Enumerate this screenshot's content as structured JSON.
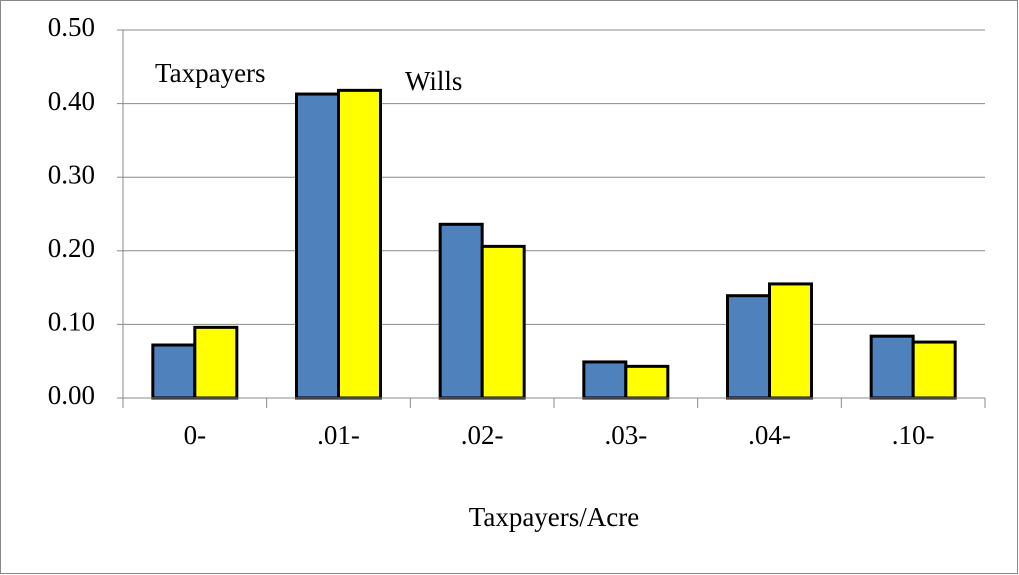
{
  "chart_data": {
    "type": "bar",
    "x_label": "Taxpayers/Acre",
    "categories": [
      "0-",
      ".01-",
      ".02-",
      ".03-",
      ".04-",
      ".10-"
    ],
    "series": [
      {
        "name": "Taxpayers",
        "color": "#4f81bd",
        "values": [
          0.072,
          0.413,
          0.236,
          0.049,
          0.139,
          0.084
        ]
      },
      {
        "name": "Wills",
        "color": "#ffff00",
        "values": [
          0.096,
          0.418,
          0.206,
          0.043,
          0.155,
          0.076
        ]
      }
    ],
    "ylim": [
      0,
      0.5
    ],
    "yticks": [
      {
        "value": 0,
        "label": "0.00"
      },
      {
        "value": 0.1,
        "label": "0.10"
      },
      {
        "value": 0.2,
        "label": "0.20"
      },
      {
        "value": 0.3,
        "label": "0.30"
      },
      {
        "value": 0.4,
        "label": "0.40"
      },
      {
        "value": 0.5,
        "label": "0.50"
      }
    ],
    "grid": true
  }
}
